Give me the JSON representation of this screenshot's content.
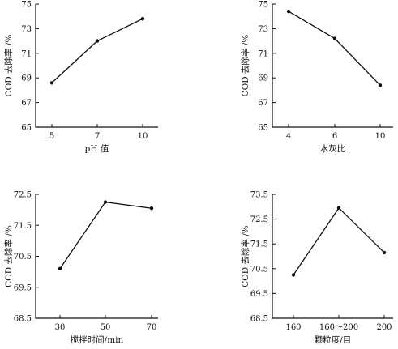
{
  "chart_data": [
    {
      "type": "line",
      "categories": [
        "5",
        "7",
        "10"
      ],
      "values": [
        68.6,
        72.0,
        73.8
      ],
      "xlabel": "pH 值",
      "ylabel": "COD 去除率 /%",
      "yticks": [
        "65",
        "67",
        "69",
        "71",
        "73",
        "75"
      ],
      "ylim": [
        65,
        75
      ]
    },
    {
      "type": "line",
      "categories": [
        "4",
        "6",
        "10"
      ],
      "values": [
        74.4,
        72.2,
        68.4
      ],
      "xlabel": "水灰比",
      "ylabel": "COD 去除率 /%",
      "yticks": [
        "65",
        "67",
        "69",
        "71",
        "73",
        "75"
      ],
      "ylim": [
        65,
        75
      ]
    },
    {
      "type": "line",
      "categories": [
        "30",
        "50",
        "70"
      ],
      "values": [
        70.1,
        72.25,
        72.05
      ],
      "xlabel": "搅拌时间/min",
      "ylabel": "COD 去除率 /%",
      "yticks": [
        "68.5",
        "69.5",
        "70.5",
        "71.5",
        "72.5"
      ],
      "ylim": [
        68.5,
        72.5
      ]
    },
    {
      "type": "line",
      "categories": [
        "160",
        "160～200",
        "200"
      ],
      "values": [
        70.25,
        72.95,
        71.15
      ],
      "xlabel": "颗粒度/目",
      "ylabel": "COD 去除率 /%",
      "yticks": [
        "68.5",
        "69.5",
        "70.5",
        "71.5",
        "72.5",
        "73.5"
      ],
      "ylim": [
        68.5,
        73.5
      ]
    }
  ]
}
